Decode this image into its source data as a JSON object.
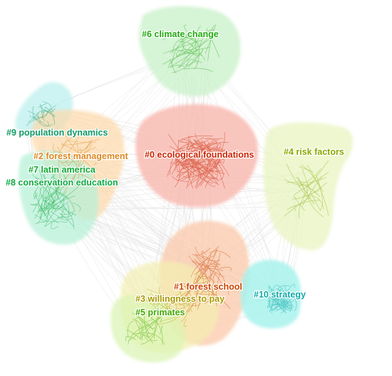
{
  "clusters": [
    {
      "id": "c0",
      "label": "#0 ecological foundations",
      "color": "#cc2200"
    },
    {
      "id": "c1",
      "label": "#1 forest school",
      "color": "#cc4400"
    },
    {
      "id": "c2",
      "label": "#2 forest management",
      "color": "#dd8822"
    },
    {
      "id": "c3",
      "label": "#3 willingness to pay",
      "color": "#aa9900"
    },
    {
      "id": "c4",
      "label": "#4 risk factors",
      "color": "#88aa00"
    },
    {
      "id": "c5",
      "label": "#5 primates",
      "color": "#44aa00"
    },
    {
      "id": "c6",
      "label": "#6 climate change",
      "color": "#22aa11"
    },
    {
      "id": "c7",
      "label": "#7 latin america",
      "color": "#11aa33"
    },
    {
      "id": "c8",
      "label": "#8 conservation education",
      "color": "#11aa44"
    },
    {
      "id": "c9",
      "label": "#9 population dynamics",
      "color": "#119966"
    },
    {
      "id": "c10",
      "label": "#10 strategy",
      "color": "#11aaaa"
    }
  ]
}
